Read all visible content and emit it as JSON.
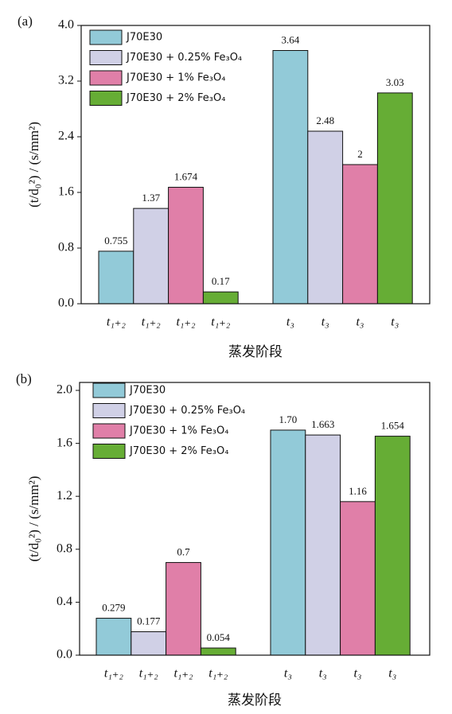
{
  "chart_data": [
    {
      "type": "bar",
      "panel_label": "(a)",
      "ylabel": "(t/d₀²) / (s/mm²)",
      "xlabel": "蒸发阶段",
      "categories": [
        "t₁₊₂",
        "t₁₊₂",
        "t₁₊₂",
        "t₁₊₂",
        "t₃",
        "t₃",
        "t₃",
        "t₃"
      ],
      "ylim": [
        0,
        4.0
      ],
      "yticks": [
        {
          "value": 0,
          "label": "0.0"
        },
        0.8,
        1.6,
        2.4,
        3.2,
        {
          "value": 4,
          "label": "4.0"
        }
      ],
      "legend": "upper left",
      "series": [
        {
          "name": "J70E30",
          "color": "#92cad8",
          "values": [
            0.755,
            null,
            null,
            null,
            3.64,
            null,
            null,
            null
          ]
        },
        {
          "name": "J70E30 + 0.25% Fe₃O₄",
          "color": "#d0d0e6",
          "values": [
            null,
            1.37,
            null,
            null,
            null,
            2.48,
            null,
            null
          ]
        },
        {
          "name": "J70E30 + 1% Fe₃O₄",
          "color": "#e07fa8",
          "values": [
            null,
            null,
            1.674,
            null,
            null,
            null,
            2,
            null
          ]
        },
        {
          "name": "J70E30 + 2% Fe₃O₄",
          "color": "#66ad35",
          "values": [
            null,
            null,
            null,
            0.17,
            null,
            null,
            null,
            3.03
          ]
        }
      ]
    },
    {
      "type": "bar",
      "panel_label": "(b)",
      "ylabel": "(t/d₀²) / (s/mm²)",
      "xlabel": "蒸发阶段",
      "categories": [
        "t₁₊₂",
        "t₁₊₂",
        "t₁₊₂",
        "t₁₊₂",
        "t₃",
        "t₃",
        "t₃",
        "t₃"
      ],
      "ylim": [
        0,
        2.06
      ],
      "yticks": [
        {
          "value": 0,
          "label": "0.0"
        },
        0.4,
        0.8,
        1.2,
        1.6,
        {
          "value": 2,
          "label": "2.0"
        }
      ],
      "legend": "upper left",
      "series": [
        {
          "name": "J70E30",
          "color": "#92cad8",
          "values": [
            0.279,
            null,
            null,
            null,
            1.7,
            null,
            null,
            null
          ],
          "value_labels": [
            "0.279",
            null,
            null,
            null,
            "1.70",
            null,
            null,
            null
          ]
        },
        {
          "name": "J70E30 + 0.25% Fe₃O₄",
          "color": "#d0d0e6",
          "values": [
            null,
            0.177,
            null,
            null,
            null,
            1.663,
            null,
            null
          ]
        },
        {
          "name": "J70E30 + 1% Fe₃O₄",
          "color": "#e07fa8",
          "values": [
            null,
            null,
            0.7,
            null,
            null,
            null,
            1.16,
            null
          ]
        },
        {
          "name": "J70E30 + 2% Fe₃O₄",
          "color": "#66ad35",
          "values": [
            null,
            null,
            null,
            0.054,
            null,
            null,
            null,
            1.654
          ]
        }
      ]
    }
  ]
}
